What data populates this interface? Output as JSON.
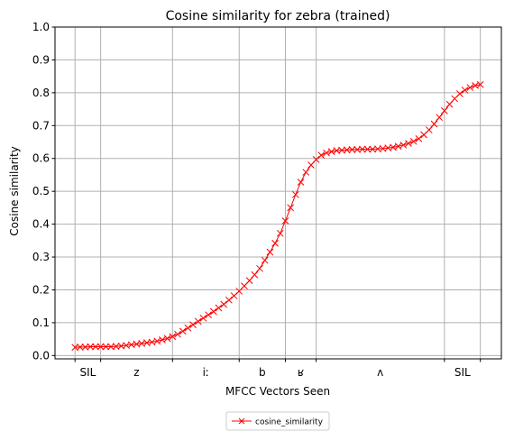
{
  "chart_data": {
    "type": "line",
    "title": "Cosine similarity for zebra (trained)",
    "xlabel": "MFCC Vectors Seen",
    "ylabel": "Cosine similarity",
    "ylim": [
      -0.01,
      1.0
    ],
    "xlim": [
      -3.9,
      83.1
    ],
    "yticks": [
      "0.0",
      "0.1",
      "0.2",
      "0.3",
      "0.4",
      "0.5",
      "0.6",
      "0.7",
      "0.8",
      "0.9",
      "1.0"
    ],
    "grid": true,
    "legend_position": "below",
    "boundaries": [
      0,
      5,
      19,
      32,
      41,
      47,
      72,
      79
    ],
    "segments": [
      {
        "label": "SIL",
        "center": 2.5
      },
      {
        "label": "z",
        "center": 12
      },
      {
        "label": "iː",
        "center": 25.5
      },
      {
        "label": "b",
        "center": 36.5
      },
      {
        "label": "ʁ",
        "center": 44
      },
      {
        "label": "ʌ",
        "center": 59.5
      },
      {
        "label": "SIL",
        "center": 75.5
      }
    ],
    "series": [
      {
        "name": "cosine_similarity",
        "color": "#ff0000",
        "marker": "x",
        "x": [
          0,
          1,
          2,
          3,
          4,
          5,
          6,
          7,
          8,
          9,
          10,
          11,
          12,
          13,
          14,
          15,
          16,
          17,
          18,
          19,
          20,
          21,
          22,
          23,
          24,
          25,
          26,
          27,
          28,
          29,
          30,
          31,
          32,
          33,
          34,
          35,
          36,
          37,
          38,
          39,
          40,
          41,
          42,
          43,
          44,
          45,
          46,
          47,
          48,
          49,
          50,
          51,
          52,
          53,
          54,
          55,
          56,
          57,
          58,
          59,
          60,
          61,
          62,
          63,
          64,
          65,
          66,
          67,
          68,
          69,
          70,
          71,
          72,
          73,
          74,
          75,
          76,
          77,
          78,
          79
        ],
        "values": [
          0.025,
          0.026,
          0.026,
          0.027,
          0.027,
          0.027,
          0.027,
          0.027,
          0.028,
          0.029,
          0.031,
          0.033,
          0.035,
          0.037,
          0.039,
          0.041,
          0.044,
          0.048,
          0.052,
          0.058,
          0.065,
          0.074,
          0.084,
          0.094,
          0.104,
          0.114,
          0.124,
          0.134,
          0.145,
          0.156,
          0.169,
          0.182,
          0.196,
          0.212,
          0.228,
          0.246,
          0.265,
          0.29,
          0.315,
          0.342,
          0.372,
          0.41,
          0.45,
          0.49,
          0.528,
          0.558,
          0.58,
          0.597,
          0.61,
          0.617,
          0.621,
          0.624,
          0.625,
          0.626,
          0.627,
          0.627,
          0.628,
          0.628,
          0.628,
          0.629,
          0.63,
          0.632,
          0.634,
          0.637,
          0.641,
          0.646,
          0.652,
          0.66,
          0.672,
          0.687,
          0.705,
          0.725,
          0.745,
          0.765,
          0.782,
          0.797,
          0.808,
          0.816,
          0.822,
          0.825
        ]
      }
    ]
  }
}
